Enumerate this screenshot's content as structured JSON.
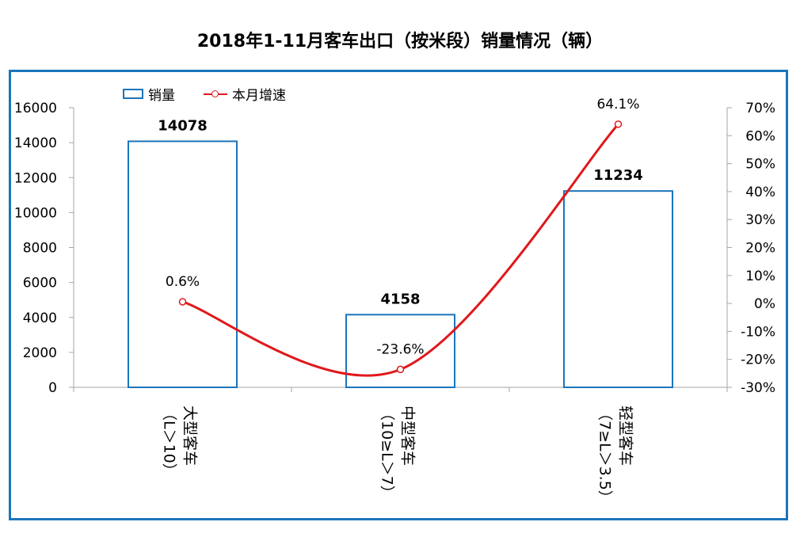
{
  "title": "2018年1-11月客车出口（按米段）销量情况（辆）",
  "legend": {
    "bar_label": "销量",
    "line_label": "本月增速"
  },
  "colors": {
    "frame": "#1b75bb",
    "bar_stroke": "#1b75bb",
    "line": "#e0181c",
    "axis": "#a6a6a6"
  },
  "chart_data": {
    "type": "bar",
    "categories": [
      "大型客车（L＞10）",
      "中型客车（10≥L＞7）",
      "轻型客车（7≥L＞3.5）"
    ],
    "category_labels": [
      {
        "name": "大型客车",
        "range": "（L＞10）"
      },
      {
        "name": "中型客车",
        "range": "（10≥L＞7）"
      },
      {
        "name": "轻型客车",
        "range": "（7≥L＞3.5）"
      }
    ],
    "series": [
      {
        "name": "销量",
        "type": "bar",
        "axis": "left",
        "values": [
          14078,
          4158,
          11234
        ],
        "labels": [
          "14078",
          "4158",
          "11234"
        ]
      },
      {
        "name": "本月增速",
        "type": "line",
        "axis": "right",
        "values": [
          0.6,
          -23.6,
          64.1
        ],
        "labels": [
          "0.6%",
          "-23.6%",
          "64.1%"
        ]
      }
    ],
    "y_left": {
      "min": 0,
      "max": 16000,
      "ticks": [
        0,
        2000,
        4000,
        6000,
        8000,
        10000,
        12000,
        14000,
        16000
      ],
      "tick_labels": [
        "0",
        "2000",
        "4000",
        "6000",
        "8000",
        "10000",
        "12000",
        "14000",
        "16000"
      ]
    },
    "y_right": {
      "min": -30,
      "max": 70,
      "ticks": [
        -30,
        -20,
        -10,
        0,
        10,
        20,
        30,
        40,
        50,
        60,
        70
      ],
      "tick_labels": [
        "-30%",
        "-20%",
        "-10%",
        "0%",
        "10%",
        "20%",
        "30%",
        "40%",
        "50%",
        "60%",
        "70%"
      ]
    },
    "grid": false,
    "legend_position": "top-left"
  }
}
